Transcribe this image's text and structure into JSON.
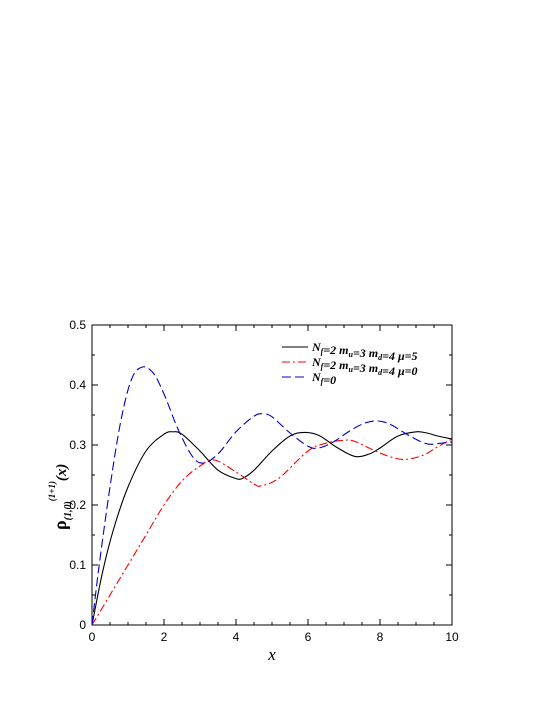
{
  "chart_data": {
    "type": "line",
    "xlabel": "x",
    "ylabel": {
      "base": "ρ",
      "subscript": "(1,0)",
      "superscript": "(1+1)",
      "arg": "(x)"
    },
    "xlim": [
      0,
      10
    ],
    "ylim": [
      0,
      0.5
    ],
    "xticks": [
      "0",
      "2",
      "4",
      "6",
      "8",
      "10"
    ],
    "yticks": [
      "0",
      "0.1",
      "0.2",
      "0.3",
      "0.4",
      "0.5"
    ],
    "grid": false,
    "legend_position": "top-right",
    "series": [
      {
        "name": "N_f=2  m_u=3 m_d=4 μ=5",
        "legend": [
          {
            "t": "N",
            "s": ""
          },
          {
            "t": "f",
            "s": "sub"
          },
          {
            "t": "=2  m",
            "s": ""
          },
          {
            "t": "u",
            "s": "sub"
          },
          {
            "t": "=3 m",
            "s": ""
          },
          {
            "t": "d",
            "s": "sub"
          },
          {
            "t": "=4 μ=5",
            "s": ""
          }
        ],
        "color": "#000000",
        "dash": "solid",
        "x": [
          0,
          0.3,
          0.6,
          1.0,
          1.5,
          2.0,
          2.25,
          2.5,
          3.0,
          3.5,
          4.0,
          4.2,
          4.5,
          5.0,
          5.5,
          5.9,
          6.3,
          6.8,
          7.3,
          7.7,
          8.0,
          8.5,
          9.0,
          9.3,
          9.6,
          10.0
        ],
        "y": [
          0,
          0.09,
          0.16,
          0.23,
          0.29,
          0.318,
          0.322,
          0.318,
          0.29,
          0.258,
          0.244,
          0.245,
          0.258,
          0.29,
          0.315,
          0.321,
          0.316,
          0.296,
          0.281,
          0.285,
          0.295,
          0.315,
          0.322,
          0.32,
          0.315,
          0.31
        ]
      },
      {
        "name": "N_f=2  m_u=3 m_d=4 μ=0",
        "legend": [
          {
            "t": "N",
            "s": ""
          },
          {
            "t": "f",
            "s": "sub"
          },
          {
            "t": "=2  m",
            "s": ""
          },
          {
            "t": "u",
            "s": "sub"
          },
          {
            "t": "=3 m",
            "s": ""
          },
          {
            "t": "d",
            "s": "sub"
          },
          {
            "t": "=4 μ=0",
            "s": ""
          }
        ],
        "color": "#ff0000",
        "dash": "dashdot",
        "x": [
          0,
          0.5,
          1.0,
          1.5,
          2.0,
          2.5,
          3.0,
          3.4,
          4.0,
          4.5,
          4.7,
          5.2,
          6.0,
          6.5,
          7.0,
          7.3,
          7.8,
          8.3,
          8.7,
          9.2,
          9.6,
          10.0
        ],
        "y": [
          0,
          0.05,
          0.1,
          0.15,
          0.2,
          0.24,
          0.265,
          0.275,
          0.255,
          0.235,
          0.232,
          0.245,
          0.29,
          0.303,
          0.308,
          0.306,
          0.292,
          0.28,
          0.276,
          0.283,
          0.297,
          0.31
        ]
      },
      {
        "name": "N_f=0",
        "legend": [
          {
            "t": "N",
            "s": ""
          },
          {
            "t": "f",
            "s": "sub"
          },
          {
            "t": "=0",
            "s": ""
          }
        ],
        "color": "#0000cc",
        "dash": "dashed",
        "x": [
          0,
          0.2,
          0.5,
          0.8,
          1.1,
          1.4,
          1.7,
          2.0,
          2.4,
          2.8,
          3.1,
          3.5,
          4.0,
          4.5,
          4.75,
          5.0,
          5.5,
          6.0,
          6.3,
          6.7,
          7.2,
          7.6,
          7.95,
          8.3,
          8.8,
          9.3,
          9.7,
          10.0
        ],
        "y": [
          0,
          0.1,
          0.23,
          0.34,
          0.41,
          0.43,
          0.42,
          0.385,
          0.325,
          0.28,
          0.27,
          0.285,
          0.322,
          0.348,
          0.352,
          0.347,
          0.32,
          0.298,
          0.295,
          0.305,
          0.325,
          0.337,
          0.34,
          0.334,
          0.316,
          0.302,
          0.303,
          0.305
        ]
      }
    ]
  }
}
